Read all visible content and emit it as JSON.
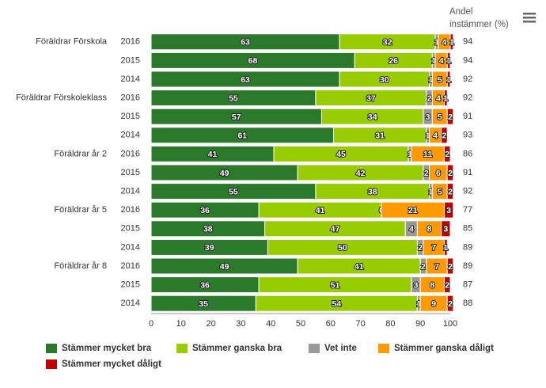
{
  "chart_data": {
    "type": "stacked_bar_horizontal",
    "group_labels": [
      "Föräldrar Förskola",
      null,
      null,
      "Föräldrar Förskoleklass",
      null,
      null,
      "Föräldrar år 2",
      null,
      null,
      "Föräldrar år 5",
      null,
      null,
      "Föräldrar år 8",
      null,
      null
    ],
    "categories": [
      "2016",
      "2015",
      "2014",
      "2016",
      "2015",
      "2014",
      "2016",
      "2015",
      "2014",
      "2016",
      "2015",
      "2014",
      "2016",
      "2015",
      "2014"
    ],
    "series": [
      {
        "name": "Stämmer mycket bra",
        "color": "#2b7a2b",
        "values": [
          63,
          68,
          63,
          55,
          57,
          61,
          41,
          49,
          55,
          36,
          38,
          39,
          49,
          36,
          35
        ]
      },
      {
        "name": "Stämmer ganska bra",
        "color": "#99cc00",
        "values": [
          32,
          26,
          30,
          37,
          34,
          31,
          45,
          42,
          38,
          41,
          47,
          50,
          41,
          51,
          54
        ]
      },
      {
        "name": "Vet inte",
        "color": "#999999",
        "values": [
          1,
          1,
          1,
          2,
          3,
          1,
          1,
          2,
          1,
          0,
          4,
          2,
          2,
          3,
          1
        ]
      },
      {
        "name": "Stämmer ganska dåligt",
        "color": "#ff9900",
        "values": [
          4,
          4,
          5,
          4,
          5,
          4,
          11,
          6,
          5,
          21,
          8,
          7,
          7,
          8,
          9
        ]
      },
      {
        "name": "Stämmer mycket dåligt",
        "color": "#c00000",
        "values": [
          1,
          1,
          1,
          1,
          2,
          2,
          2,
          2,
          2,
          3,
          3,
          1,
          2,
          2,
          2
        ]
      }
    ],
    "right_header_lines": [
      "Andel",
      "instämmer (%)"
    ],
    "right_values": [
      94,
      94,
      92,
      92,
      91,
      93,
      86,
      91,
      92,
      77,
      85,
      89,
      89,
      87,
      88
    ],
    "xlim": [
      0,
      100
    ],
    "xticks": [
      0,
      10,
      20,
      30,
      40,
      50,
      60,
      70,
      80,
      90,
      100
    ],
    "grid": false
  }
}
